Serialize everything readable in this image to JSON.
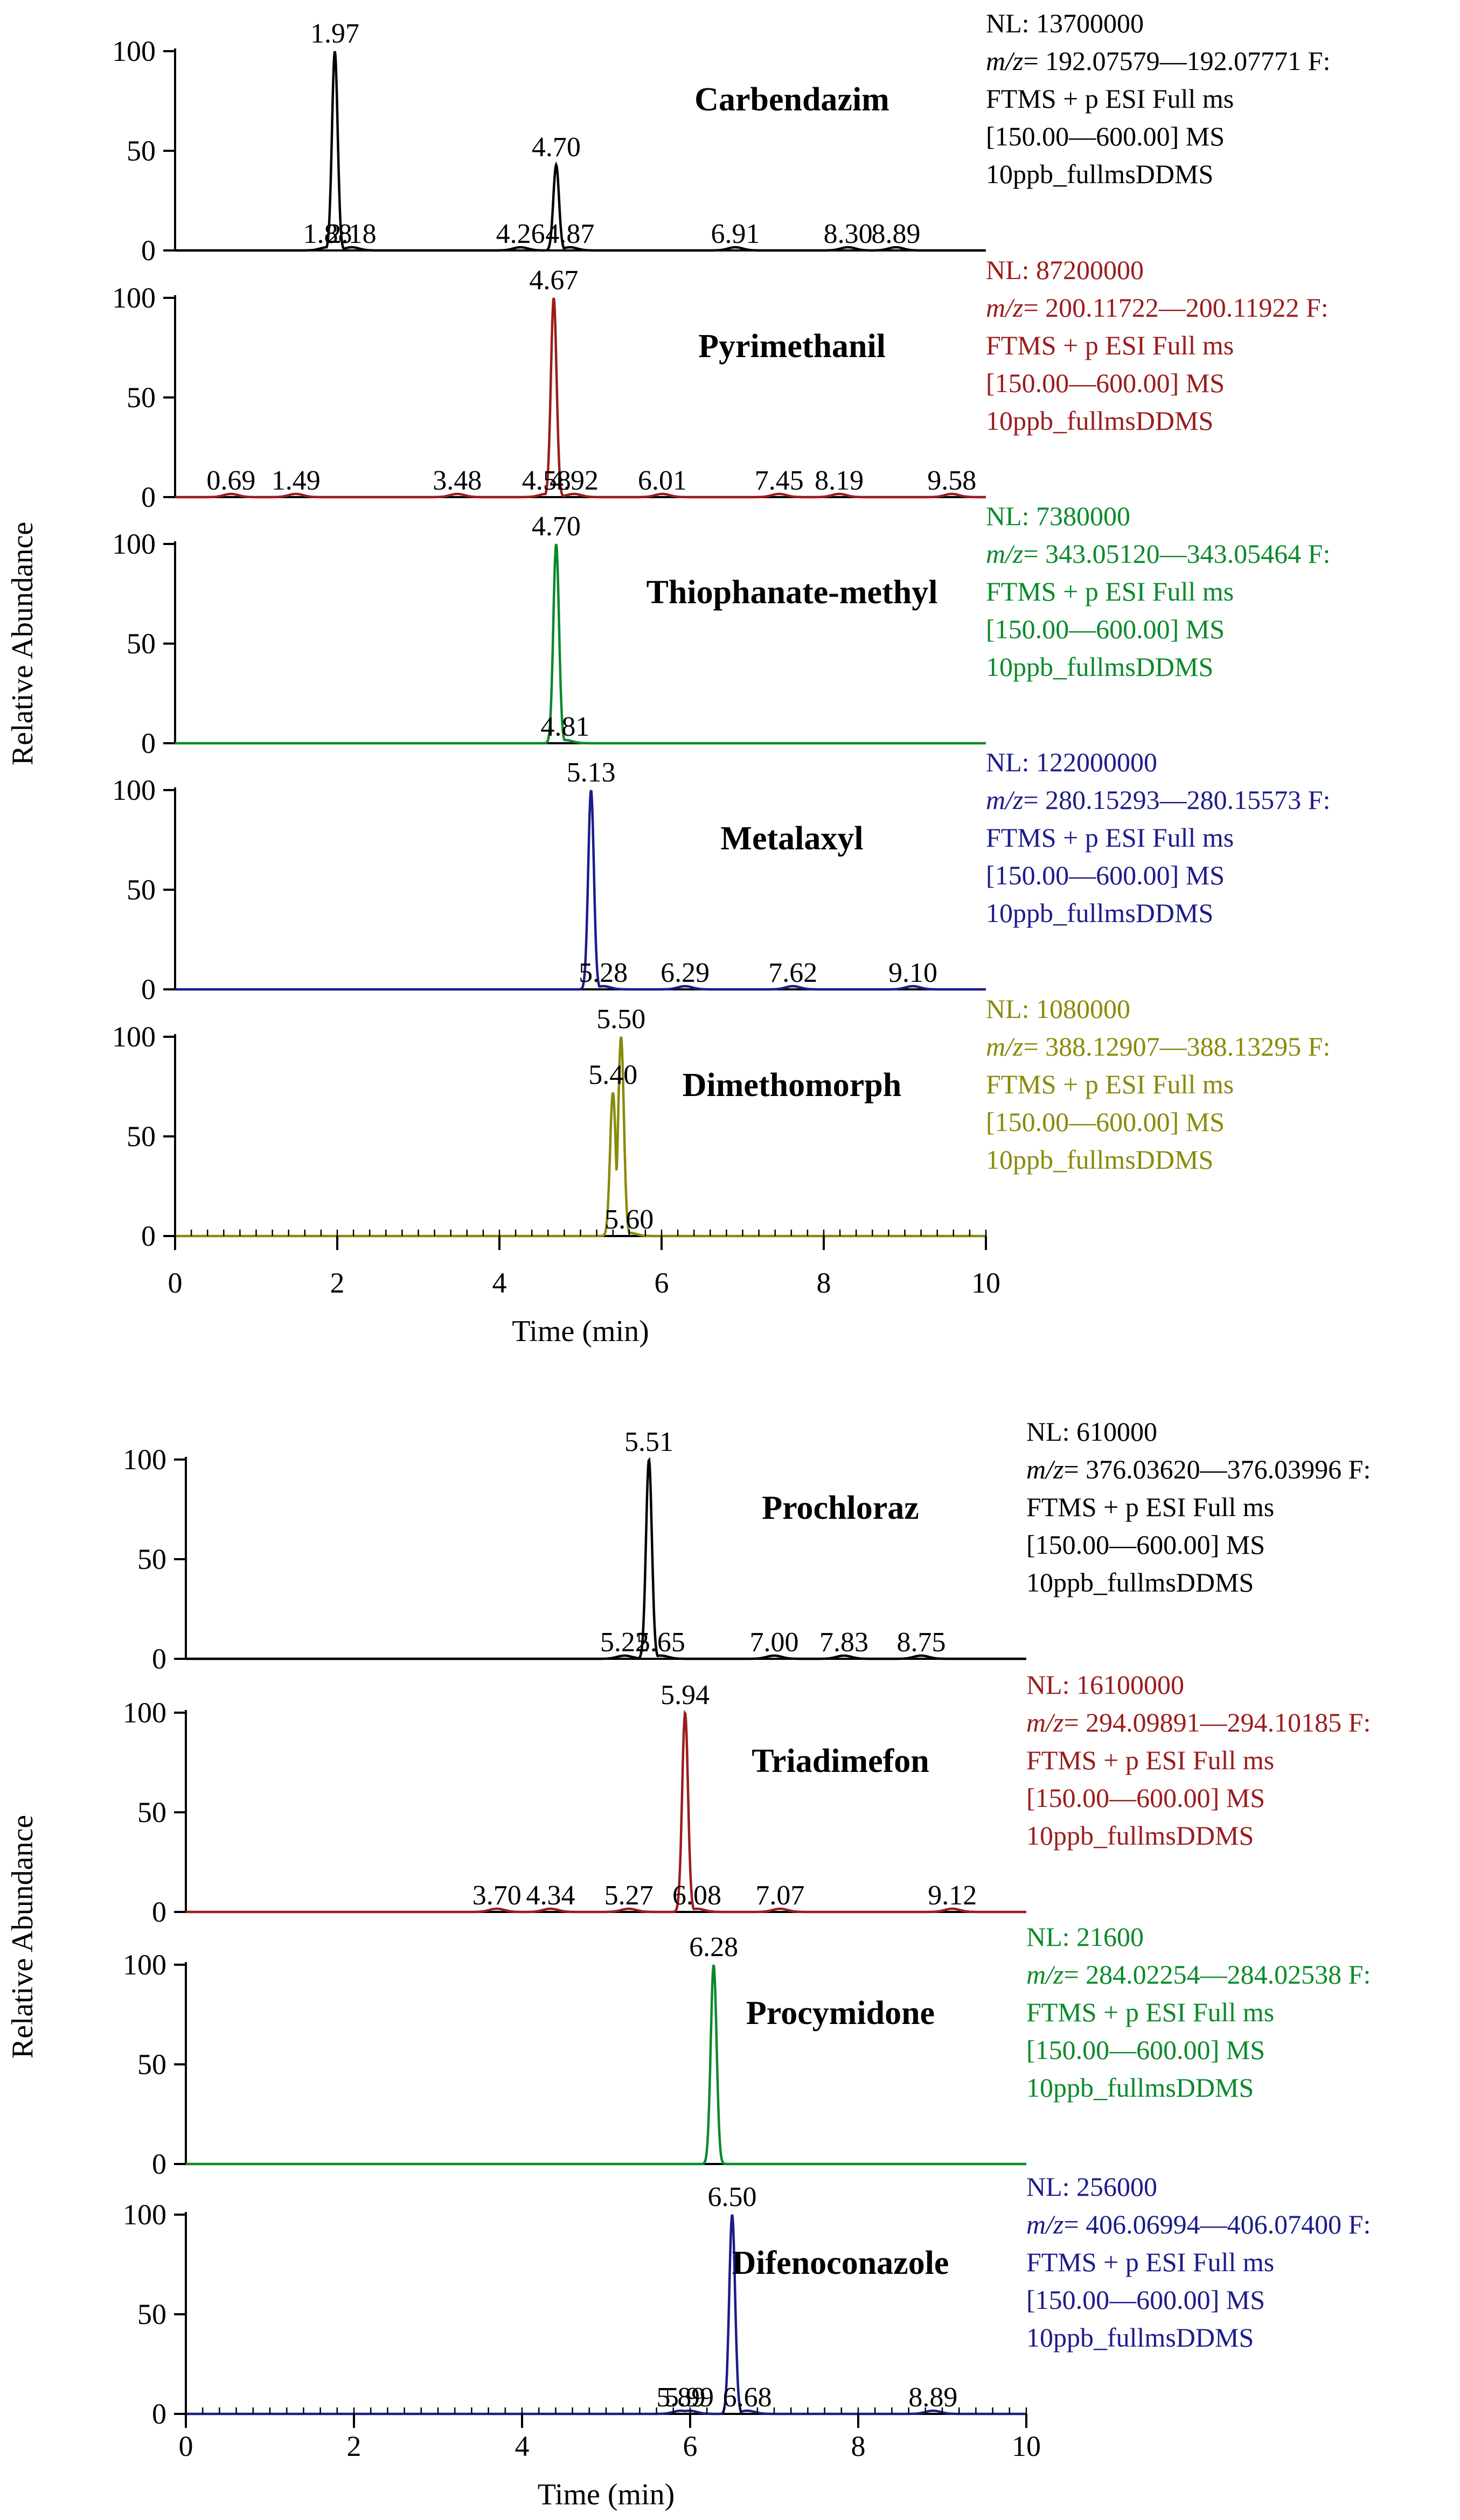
{
  "chart_data": [
    {
      "type": "line",
      "panel_group": "top",
      "xlabel": "Time (min)",
      "ylabel": "Relative Abundance",
      "xlim": [
        0,
        10
      ],
      "ylim": [
        0,
        100
      ],
      "x_ticks": [
        "0",
        "2",
        "4",
        "6",
        "8",
        "10"
      ],
      "y_ticks": [
        "0",
        "50",
        "100"
      ],
      "series": [
        {
          "name": "Carbendazim",
          "color": "#000000",
          "info": {
            "nl": "NL: 13700000",
            "mz_prefix": "m/z",
            "mz_range": "= 192.07579—192.07771 F:",
            "scan": "FTMS + p ESI Full ms",
            "range": "[150.00—600.00]  MS",
            "file": "10ppb_fullmsDDMS"
          },
          "peaks": [
            {
              "label": "1.97",
              "rt": 1.97,
              "height": 100
            },
            {
              "label": "4.70",
              "rt": 4.7,
              "height": 43
            },
            {
              "label": "1.88",
              "rt": 1.88,
              "height": 0
            },
            {
              "label": "2.18",
              "rt": 2.18,
              "height": 0
            },
            {
              "label": "4.26",
              "rt": 4.26,
              "height": 0
            },
            {
              "label": "4.87",
              "rt": 4.87,
              "height": 0
            },
            {
              "label": "6.91",
              "rt": 6.91,
              "height": 0
            },
            {
              "label": "8.30",
              "rt": 8.3,
              "height": 0
            },
            {
              "label": "8.89",
              "rt": 8.89,
              "height": 0
            }
          ]
        },
        {
          "name": "Pyrimethanil",
          "color": "#9b1c1c",
          "info": {
            "nl": "NL: 87200000",
            "mz_prefix": "m/z",
            "mz_range": "= 200.11722—200.11922 F:",
            "scan": "FTMS + p ESI Full ms",
            "range": "[150.00—600.00]  MS",
            "file": "10ppb_fullmsDDMS"
          },
          "peaks": [
            {
              "label": "4.67",
              "rt": 4.67,
              "height": 100
            },
            {
              "label": "0.69",
              "rt": 0.69,
              "height": 0
            },
            {
              "label": "1.49",
              "rt": 1.49,
              "height": 0
            },
            {
              "label": "3.48",
              "rt": 3.48,
              "height": 0
            },
            {
              "label": "4.58",
              "rt": 4.58,
              "height": 0
            },
            {
              "label": "4.92",
              "rt": 4.92,
              "height": 0
            },
            {
              "label": "6.01",
              "rt": 6.01,
              "height": 0
            },
            {
              "label": "7.45",
              "rt": 7.45,
              "height": 0
            },
            {
              "label": "8.19",
              "rt": 8.19,
              "height": 0
            },
            {
              "label": "9.58",
              "rt": 9.58,
              "height": 0
            }
          ]
        },
        {
          "name": "Thiophanate-methyl",
          "color": "#0a8a2a",
          "info": {
            "nl": "NL: 7380000",
            "mz_prefix": "m/z",
            "mz_range": "= 343.05120—343.05464 F:",
            "scan": "FTMS + p ESI Full ms",
            "range": "[150.00—600.00]  MS",
            "file": "10ppb_fullmsDDMS"
          },
          "peaks": [
            {
              "label": "4.70",
              "rt": 4.7,
              "height": 100
            },
            {
              "label": "4.81",
              "rt": 4.81,
              "height": 0
            }
          ]
        },
        {
          "name": "Metalaxyl",
          "color": "#1c1c8a",
          "info": {
            "nl": "NL: 122000000",
            "mz_prefix": "m/z",
            "mz_range": "= 280.15293—280.15573 F:",
            "scan": "FTMS + p ESI Full ms",
            "range": "[150.00—600.00]  MS",
            "file": "10ppb_fullmsDDMS"
          },
          "peaks": [
            {
              "label": "5.13",
              "rt": 5.13,
              "height": 100
            },
            {
              "label": "5.28",
              "rt": 5.28,
              "height": 0
            },
            {
              "label": "6.29",
              "rt": 6.29,
              "height": 0
            },
            {
              "label": "7.62",
              "rt": 7.62,
              "height": 0
            },
            {
              "label": "9.10",
              "rt": 9.1,
              "height": 0
            }
          ]
        },
        {
          "name": "Dimethomorph",
          "color": "#8a8a0a",
          "info": {
            "nl": "NL: 1080000",
            "mz_prefix": "m/z",
            "mz_range": "= 388.12907—388.13295 F:",
            "scan": "FTMS + p ESI Full ms",
            "range": "[150.00—600.00]  MS",
            "file": "10ppb_fullmsDDMS"
          },
          "peaks": [
            {
              "label": "5.50",
              "rt": 5.5,
              "height": 100
            },
            {
              "label": "5.40",
              "rt": 5.4,
              "height": 72
            },
            {
              "label": "5.60",
              "rt": 5.6,
              "height": 0
            }
          ]
        }
      ]
    },
    {
      "type": "line",
      "panel_group": "bottom",
      "xlabel": "Time (min)",
      "ylabel": "Relative Abundance",
      "xlim": [
        0,
        10
      ],
      "ylim": [
        0,
        100
      ],
      "x_ticks": [
        "0",
        "2",
        "4",
        "6",
        "8",
        "10"
      ],
      "y_ticks": [
        "0",
        "50",
        "100"
      ],
      "series": [
        {
          "name": "Prochloraz",
          "color": "#000000",
          "info": {
            "nl": "NL: 610000",
            "mz_prefix": "m/z",
            "mz_range": "= 376.03620—376.03996 F:",
            "scan": "FTMS + p ESI Full ms",
            "range": "[150.00—600.00]  MS",
            "file": "10ppb_fullmsDDMS"
          },
          "peaks": [
            {
              "label": "5.51",
              "rt": 5.51,
              "height": 100
            },
            {
              "label": "5.22",
              "rt": 5.22,
              "height": 0
            },
            {
              "label": "5.65",
              "rt": 5.65,
              "height": 0
            },
            {
              "label": "7.00",
              "rt": 7.0,
              "height": 0
            },
            {
              "label": "7.83",
              "rt": 7.83,
              "height": 0
            },
            {
              "label": "8.75",
              "rt": 8.75,
              "height": 0
            }
          ]
        },
        {
          "name": "Triadimefon",
          "color": "#9b1c1c",
          "info": {
            "nl": "NL: 16100000",
            "mz_prefix": "m/z",
            "mz_range": "= 294.09891—294.10185 F:",
            "scan": "FTMS + p ESI Full ms",
            "range": "[150.00—600.00]  MS",
            "file": "10ppb_fullmsDDMS"
          },
          "peaks": [
            {
              "label": "5.94",
              "rt": 5.94,
              "height": 100
            },
            {
              "label": "3.70",
              "rt": 3.7,
              "height": 0
            },
            {
              "label": "4.34",
              "rt": 4.34,
              "height": 0
            },
            {
              "label": "5.27",
              "rt": 5.27,
              "height": 0
            },
            {
              "label": "6.08",
              "rt": 6.08,
              "height": 0
            },
            {
              "label": "7.07",
              "rt": 7.07,
              "height": 0
            },
            {
              "label": "9.12",
              "rt": 9.12,
              "height": 0
            }
          ]
        },
        {
          "name": "Procymidone",
          "color": "#0a8a2a",
          "info": {
            "nl": "NL: 21600",
            "mz_prefix": "m/z",
            "mz_range": "= 284.02254—284.02538 F:",
            "scan": "FTMS + p ESI Full ms",
            "range": "[150.00—600.00]  MS",
            "file": "10ppb_fullmsDDMS"
          },
          "peaks": [
            {
              "label": "6.28",
              "rt": 6.28,
              "height": 100
            }
          ]
        },
        {
          "name": "Difenoconazole",
          "color": "#1c1c8a",
          "info": {
            "nl": "NL: 256000",
            "mz_prefix": "m/z",
            "mz_range": "= 406.06994—406.07400 F:",
            "scan": "FTMS + p ESI Full ms",
            "range": "[150.00—600.00]  MS",
            "file": "10ppb_fullmsDDMS"
          },
          "peaks": [
            {
              "label": "6.50",
              "rt": 6.5,
              "height": 100
            },
            {
              "label": "5.89",
              "rt": 5.89,
              "height": 0
            },
            {
              "label": "5.99",
              "rt": 5.99,
              "height": 0
            },
            {
              "label": "6.68",
              "rt": 6.68,
              "height": 0
            },
            {
              "label": "8.89",
              "rt": 8.89,
              "height": 0
            }
          ]
        }
      ]
    }
  ]
}
